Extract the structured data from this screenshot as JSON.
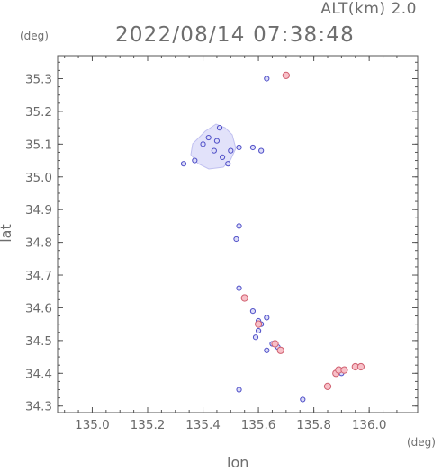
{
  "header": {
    "altitude": "ALT(km) 2.0",
    "datetime": "2022/08/14 07:38:48"
  },
  "chart_data": {
    "type": "scatter",
    "xlabel": "lon",
    "ylabel": "lat",
    "x_unit": "(deg)",
    "y_unit": "(deg)",
    "xlim": [
      134.875,
      136.175
    ],
    "ylim": [
      34.28,
      35.37
    ],
    "xticks": [
      "135.0",
      "135.2",
      "135.4",
      "135.6",
      "135.8",
      "136.0"
    ],
    "yticks": [
      "34.3",
      "34.4",
      "34.5",
      "34.6",
      "34.7",
      "34.8",
      "34.9",
      "35.0",
      "35.1",
      "35.2",
      "35.3"
    ],
    "colors": {
      "blue_fill": "#dcdcf8",
      "blue_edge": "#5050c8",
      "pink_fill": "#f8c0c8",
      "pink_edge": "#d06070"
    },
    "series": [
      {
        "color": "blue",
        "points": [
          [
            135.4,
            35.1
          ],
          [
            135.42,
            35.12
          ],
          [
            135.45,
            35.11
          ],
          [
            135.44,
            35.08
          ],
          [
            135.47,
            35.06
          ],
          [
            135.5,
            35.08
          ],
          [
            135.53,
            35.09
          ],
          [
            135.49,
            35.04
          ],
          [
            135.37,
            35.05
          ],
          [
            135.33,
            35.04
          ],
          [
            135.46,
            35.15
          ],
          [
            135.58,
            35.09
          ],
          [
            135.61,
            35.08
          ],
          [
            135.63,
            35.3
          ],
          [
            135.53,
            34.85
          ],
          [
            135.52,
            34.81
          ],
          [
            135.53,
            34.66
          ],
          [
            135.55,
            34.63
          ],
          [
            135.58,
            34.59
          ],
          [
            135.6,
            34.56
          ],
          [
            135.61,
            34.55
          ],
          [
            135.63,
            34.57
          ],
          [
            135.6,
            34.53
          ],
          [
            135.59,
            34.51
          ],
          [
            135.65,
            34.49
          ],
          [
            135.67,
            34.48
          ],
          [
            135.63,
            34.47
          ],
          [
            135.76,
            34.32
          ],
          [
            135.53,
            34.35
          ],
          [
            135.9,
            34.4
          ]
        ]
      },
      {
        "color": "pink",
        "points": [
          [
            135.7,
            35.31
          ],
          [
            135.55,
            34.63
          ],
          [
            135.6,
            34.55
          ],
          [
            135.66,
            34.49
          ],
          [
            135.68,
            34.47
          ],
          [
            135.88,
            34.4
          ],
          [
            135.89,
            34.41
          ],
          [
            135.91,
            34.41
          ],
          [
            135.95,
            34.42
          ],
          [
            135.97,
            34.42
          ],
          [
            135.85,
            34.36
          ]
        ]
      }
    ]
  }
}
